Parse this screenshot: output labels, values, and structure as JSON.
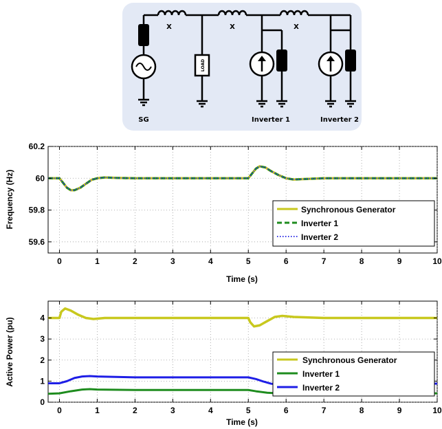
{
  "diagram": {
    "labels": {
      "sg": "SG",
      "inverter1": "Inverter 1",
      "inverter2": "Inverter 2",
      "load": "LOAD",
      "reactance": [
        "X",
        "X",
        "X"
      ]
    },
    "colors": {
      "panel": "#e3e9f5",
      "wire": "#000000"
    },
    "icons": [
      "inductor-icon",
      "generator-icon",
      "current-source-icon",
      "ground-icon",
      "impedance-icon"
    ]
  },
  "chart_data": [
    {
      "type": "line",
      "xlabel": "Time (s)",
      "ylabel": "Frequency (Hz)",
      "xlim": [
        -0.3,
        10
      ],
      "ylim": [
        59.53,
        60.2
      ],
      "xticks": [
        "0",
        "1",
        "2",
        "3",
        "4",
        "5",
        "6",
        "7",
        "8",
        "9",
        "10"
      ],
      "yticks": [
        "60.2",
        "60",
        "59.8",
        "59.6"
      ],
      "grid": true,
      "legend_position": "lower-right",
      "series": [
        {
          "name": "Synchronous Generator",
          "color": "#c8c81e",
          "style": "solid",
          "x": [
            -0.3,
            0,
            0.1,
            0.2,
            0.3,
            0.4,
            0.55,
            0.7,
            0.85,
            1.0,
            1.2,
            1.5,
            2,
            3,
            4,
            5,
            5.1,
            5.2,
            5.3,
            5.45,
            5.6,
            5.8,
            6.0,
            6.2,
            6.5,
            7,
            8,
            9,
            10
          ],
          "y": [
            60.0,
            60.0,
            59.97,
            59.94,
            59.925,
            59.925,
            59.94,
            59.965,
            59.99,
            60.0,
            60.005,
            60.002,
            60.0,
            60.0,
            60.0,
            60.0,
            60.03,
            60.06,
            60.075,
            60.068,
            60.045,
            60.02,
            60.0,
            59.992,
            59.995,
            60.0,
            60.0,
            60.0,
            60.0
          ]
        },
        {
          "name": "Inverter 1",
          "color": "#1e8c1e",
          "style": "dashed",
          "x": [
            -0.3,
            0,
            0.1,
            0.2,
            0.3,
            0.4,
            0.55,
            0.7,
            0.85,
            1.0,
            1.2,
            1.5,
            2,
            3,
            4,
            5,
            5.1,
            5.2,
            5.3,
            5.45,
            5.6,
            5.8,
            6.0,
            6.2,
            6.5,
            7,
            8,
            9,
            10
          ],
          "y": [
            60.0,
            60.0,
            59.97,
            59.94,
            59.925,
            59.925,
            59.94,
            59.965,
            59.99,
            60.0,
            60.005,
            60.002,
            60.0,
            60.0,
            60.0,
            60.0,
            60.03,
            60.06,
            60.075,
            60.068,
            60.045,
            60.02,
            60.0,
            59.992,
            59.995,
            60.0,
            60.0,
            60.0,
            60.0
          ]
        },
        {
          "name": "Inverter 2",
          "color": "#3232e6",
          "style": "dotted",
          "x": [
            -0.3,
            0,
            0.1,
            0.2,
            0.3,
            0.4,
            0.55,
            0.7,
            0.85,
            1.0,
            1.2,
            1.5,
            2,
            3,
            4,
            5,
            5.1,
            5.2,
            5.3,
            5.45,
            5.6,
            5.8,
            6.0,
            6.2,
            6.5,
            7,
            8,
            9,
            10
          ],
          "y": [
            60.0,
            60.0,
            59.97,
            59.94,
            59.925,
            59.925,
            59.94,
            59.965,
            59.99,
            60.0,
            60.005,
            60.002,
            60.0,
            60.0,
            60.0,
            60.0,
            60.03,
            60.06,
            60.075,
            60.068,
            60.045,
            60.02,
            60.0,
            59.992,
            59.995,
            60.0,
            60.0,
            60.0,
            60.0
          ]
        }
      ]
    },
    {
      "type": "line",
      "xlabel": "Time (s)",
      "ylabel": "Active Power (pu)",
      "xlim": [
        -0.3,
        10
      ],
      "ylim": [
        0,
        4.8
      ],
      "xticks": [
        "0",
        "1",
        "2",
        "3",
        "4",
        "5",
        "6",
        "7",
        "8",
        "9",
        "10"
      ],
      "yticks": [
        "4",
        "3",
        "2",
        "1",
        "0"
      ],
      "grid": true,
      "legend_position": "right",
      "series": [
        {
          "name": "Synchronous Generator",
          "color": "#c8c81e",
          "style": "solid",
          "x": [
            -0.3,
            0,
            0.05,
            0.15,
            0.3,
            0.5,
            0.7,
            0.9,
            1.2,
            2,
            3,
            4,
            5,
            5.05,
            5.15,
            5.3,
            5.5,
            5.7,
            5.9,
            6.2,
            7,
            8,
            9,
            10
          ],
          "y": [
            4.0,
            4.0,
            4.3,
            4.45,
            4.35,
            4.15,
            4.0,
            3.95,
            4.0,
            4.0,
            4.0,
            4.0,
            4.0,
            3.8,
            3.6,
            3.65,
            3.85,
            4.05,
            4.1,
            4.05,
            4.0,
            4.0,
            4.0,
            4.0
          ]
        },
        {
          "name": "Inverter 1",
          "color": "#1e8c1e",
          "style": "solid",
          "x": [
            -0.3,
            0,
            0.3,
            0.6,
            0.8,
            1.0,
            2,
            3,
            4,
            5,
            5.2,
            5.5,
            5.8,
            6.0,
            7,
            8,
            9,
            10
          ],
          "y": [
            0.4,
            0.42,
            0.52,
            0.6,
            0.62,
            0.6,
            0.58,
            0.58,
            0.58,
            0.58,
            0.52,
            0.45,
            0.42,
            0.42,
            0.42,
            0.42,
            0.42,
            0.42
          ],
          "note": ""
        },
        {
          "name": "Inverter 2",
          "color": "#1e1ee6",
          "style": "solid",
          "x": [
            -0.3,
            0,
            0.2,
            0.4,
            0.6,
            0.8,
            1.0,
            1.5,
            2,
            3,
            4,
            5,
            5.2,
            5.4,
            5.6,
            5.8,
            6.0,
            6.3,
            7,
            8,
            9,
            10
          ],
          "y": [
            0.9,
            0.9,
            1.0,
            1.15,
            1.22,
            1.24,
            1.22,
            1.2,
            1.18,
            1.18,
            1.18,
            1.18,
            1.1,
            0.98,
            0.88,
            0.82,
            0.84,
            0.88,
            0.88,
            0.88,
            0.88,
            0.88
          ]
        }
      ]
    }
  ]
}
